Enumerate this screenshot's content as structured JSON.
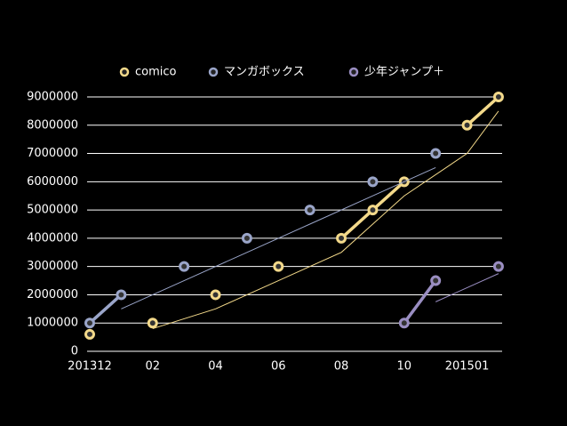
{
  "chart_data": {
    "type": "line",
    "categories": [
      "201312",
      null,
      "02",
      null,
      "04",
      null,
      "06",
      null,
      "08",
      null,
      "10",
      null,
      "201501",
      null
    ],
    "series": [
      {
        "name": "comico",
        "color": "#f3d98a",
        "values": [
          600000,
          null,
          1000000,
          null,
          2000000,
          null,
          3000000,
          null,
          4000000,
          5000000,
          6000000,
          null,
          8000000,
          9000000
        ]
      },
      {
        "name": "マンガボックス",
        "color": "#9aa5c9",
        "values": [
          1000000,
          2000000,
          null,
          3000000,
          null,
          4000000,
          null,
          5000000,
          null,
          6000000,
          null,
          7000000,
          null,
          null
        ]
      },
      {
        "name": "少年ジャンプ＋",
        "color": "#9a8ec2",
        "values": [
          null,
          null,
          null,
          null,
          null,
          null,
          null,
          null,
          null,
          null,
          1000000,
          2500000,
          null,
          3000000
        ]
      }
    ],
    "ylim": [
      0,
      9000000
    ],
    "yticks": [
      0,
      1000000,
      2000000,
      3000000,
      4000000,
      5000000,
      6000000,
      7000000,
      8000000,
      9000000
    ],
    "grid": true,
    "legend": "top"
  }
}
